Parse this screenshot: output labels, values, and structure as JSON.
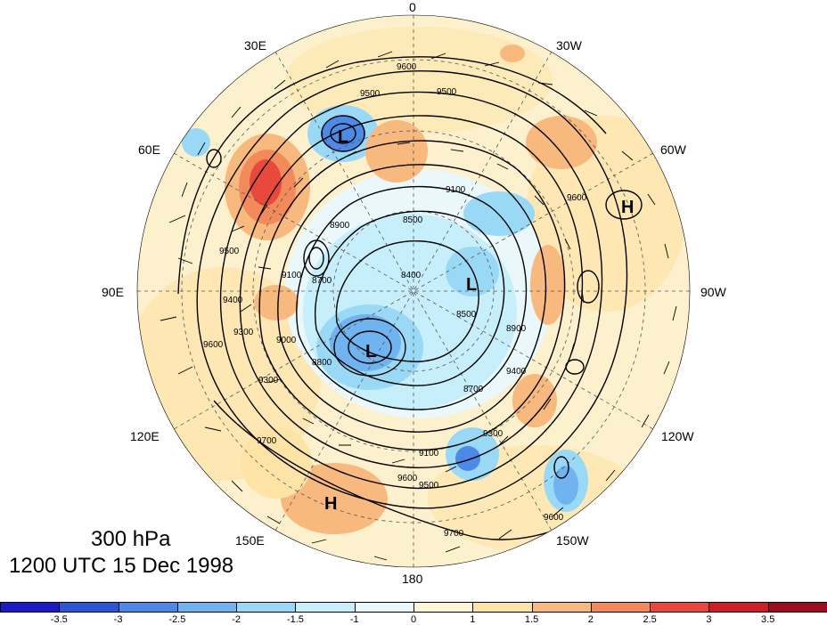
{
  "map": {
    "longitude_labels": {
      "top": "0",
      "upper_left": "30E",
      "upper_right": "30W",
      "left_upper": "60E",
      "right_upper": "60W",
      "left": "90E",
      "right": "90W",
      "left_lower": "120E",
      "right_lower": "120W",
      "lower_left": "150E",
      "lower_right": "150W",
      "bottom": "180"
    },
    "pressure_centers": [
      {
        "name": "low-center-europe",
        "label": "L"
      },
      {
        "name": "low-center-siberia",
        "label": "L"
      },
      {
        "name": "low-center-canada",
        "label": "L"
      },
      {
        "name": "high-center-atlantic",
        "label": "H"
      },
      {
        "name": "high-center-pacific",
        "label": "H"
      }
    ],
    "contour_labels": [
      "9600",
      "9500",
      "9500",
      "9100",
      "8500",
      "8900",
      "8700",
      "8400",
      "8500",
      "8900",
      "9100",
      "9600",
      "9500",
      "9700",
      "9600",
      "9300",
      "9400",
      "9500",
      "9100",
      "9000",
      "9300",
      "9600",
      "8800",
      "8700",
      "9300",
      "9400",
      "9600",
      "9700"
    ]
  },
  "title": {
    "level": "300 hPa",
    "time": "1200 UTC 15 Dec 1998"
  },
  "colorbar": {
    "tick_labels": [
      "-3.5",
      "-3",
      "-2.5",
      "-2",
      "-1.5",
      "-1",
      "0",
      "1",
      "1.5",
      "2",
      "2.5",
      "3",
      "3.5"
    ],
    "colors": [
      "#1c1cc7",
      "#2d56d6",
      "#4d8ae6",
      "#6fb4f0",
      "#9ad9f6",
      "#c6eefb",
      "#eaf8fc",
      "#fff6d6",
      "#fde3a6",
      "#f8b97e",
      "#f28a5c",
      "#e8493c",
      "#cc1f26",
      "#9e0e1e"
    ]
  }
}
